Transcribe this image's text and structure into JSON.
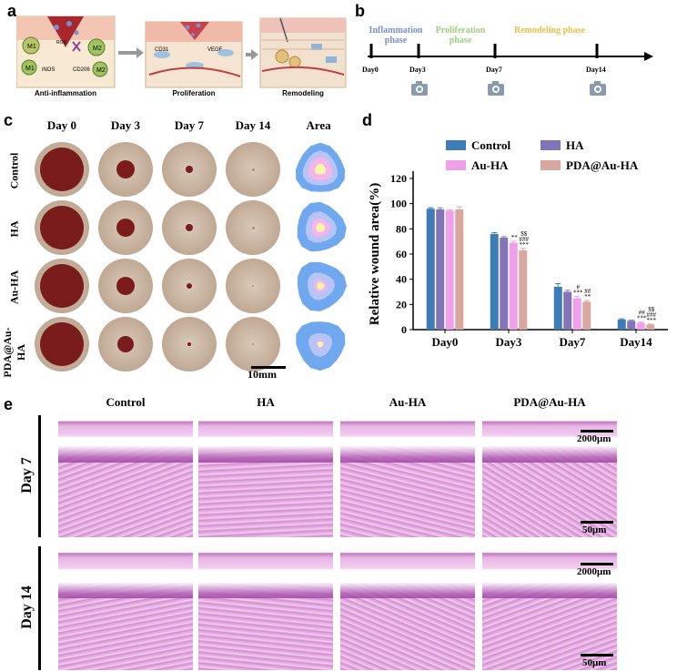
{
  "panels": {
    "a": {
      "letter": "a",
      "captions": [
        "Anti-inflammation",
        "Proliferation",
        "Remodeling"
      ],
      "labels": {
        "ros": "ROS",
        "inos": "iNOS",
        "cd206": "CD206",
        "m1": "M1",
        "m2": "M2",
        "cd31": "CD31",
        "vegf": "VEGF"
      }
    },
    "b": {
      "letter": "b",
      "phases": [
        "Inflammation phase",
        "Proliferation phase",
        "Remodeling phase"
      ],
      "days": [
        "Day0",
        "Day3",
        "Day7",
        "Day14"
      ],
      "phase_colors": [
        "#7b8fc9",
        "#9fcf7e",
        "#e6c24a"
      ],
      "icon": "camera-icon"
    },
    "c": {
      "letter": "c",
      "columns": [
        "Day 0",
        "Day 3",
        "Day 7",
        "Day 14",
        "Area"
      ],
      "rows": [
        "Control",
        "HA",
        "Au-HA",
        "PDA@Au-HA"
      ],
      "scale": "10mm"
    },
    "d": {
      "letter": "d"
    },
    "e": {
      "letter": "e",
      "columns": [
        "Control",
        "HA",
        "Au-HA",
        "PDA@Au-HA"
      ],
      "rows": [
        "Day 7",
        "Day 14"
      ],
      "scales": [
        "2000μm",
        "50μm",
        "2000μm",
        "50μm"
      ]
    }
  },
  "chart_data": {
    "type": "bar",
    "ylabel": "Relative wound area(%)",
    "xlabel": "",
    "categories": [
      "Day0",
      "Day3",
      "Day7",
      "Day14"
    ],
    "yticks": [
      0,
      20,
      40,
      60,
      80,
      100,
      120
    ],
    "ylim": [
      0,
      120
    ],
    "legend_position": "top",
    "series": [
      {
        "name": "Control",
        "color": "#3d7cb4",
        "values": [
          96,
          76,
          34,
          8
        ],
        "errors": [
          0.8,
          1,
          2.5,
          0.6
        ]
      },
      {
        "name": "HA",
        "color": "#8274b8",
        "values": [
          95.5,
          73,
          30,
          7
        ],
        "errors": [
          1.2,
          0.8,
          1.2,
          0.5
        ]
      },
      {
        "name": "Au-HA",
        "color": "#f0a0e8",
        "values": [
          94.5,
          69,
          25,
          5.5
        ],
        "errors": [
          0.6,
          1.2,
          1.5,
          0.5
        ]
      },
      {
        "name": "PDA@Au-HA",
        "color": "#d8a8a0",
        "values": [
          95.5,
          63,
          22,
          4
        ],
        "errors": [
          2,
          1.5,
          1,
          0.4
        ]
      }
    ],
    "annotations": [
      {
        "category": "Day3",
        "series": "Au-HA",
        "lines": [
          "**"
        ]
      },
      {
        "category": "Day3",
        "series": "PDA@Au-HA",
        "lines": [
          "$$",
          "###",
          "***"
        ]
      },
      {
        "category": "Day7",
        "series": "Au-HA",
        "lines": [
          "#",
          "***"
        ]
      },
      {
        "category": "Day7",
        "series": "PDA@Au-HA",
        "lines": [
          "##",
          "**"
        ]
      },
      {
        "category": "Day14",
        "series": "Au-HA",
        "lines": [
          "##",
          "***"
        ]
      },
      {
        "category": "Day14",
        "series": "PDA@Au-HA",
        "lines": [
          "$$",
          "###",
          "***"
        ]
      }
    ]
  }
}
